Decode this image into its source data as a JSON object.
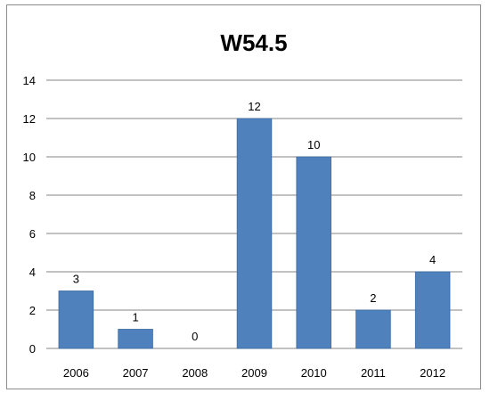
{
  "chart_data": {
    "type": "bar",
    "title": "W54.5",
    "categories": [
      "2006",
      "2007",
      "2008",
      "2009",
      "2010",
      "2011",
      "2012"
    ],
    "values": [
      3,
      1,
      0,
      12,
      10,
      2,
      4
    ],
    "ylim": [
      0,
      14
    ],
    "yticks": [
      0,
      2,
      4,
      6,
      8,
      10,
      12,
      14
    ],
    "grid": true,
    "legend": "none",
    "bar_color": "#4f81bd",
    "bar_edge_color": "#3a6aa3",
    "grid_color": "#868686",
    "data_labels": true
  }
}
